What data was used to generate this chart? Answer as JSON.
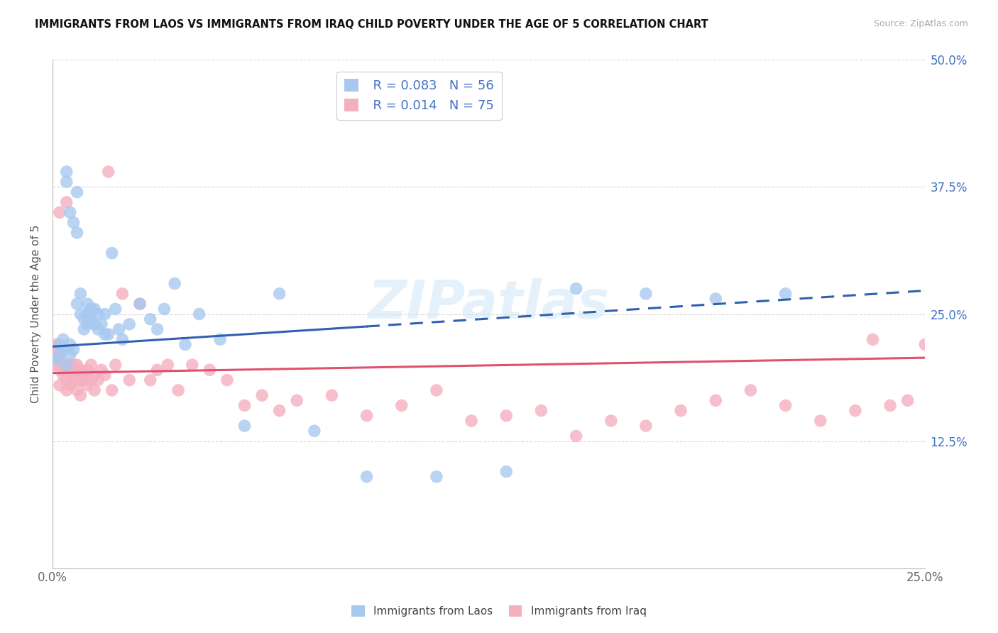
{
  "title": "IMMIGRANTS FROM LAOS VS IMMIGRANTS FROM IRAQ CHILD POVERTY UNDER THE AGE OF 5 CORRELATION CHART",
  "source": "Source: ZipAtlas.com",
  "ylabel_label": "Child Poverty Under the Age of 5",
  "legend_laos": "Immigrants from Laos",
  "legend_iraq": "Immigrants from Iraq",
  "r_laos": "0.083",
  "n_laos": "56",
  "r_iraq": "0.014",
  "n_iraq": "75",
  "color_laos": "#a8c8f0",
  "color_iraq": "#f5b0c0",
  "color_laos_line": "#3060b0",
  "color_iraq_line": "#e05070",
  "watermark": "ZIPatlas",
  "background": "#ffffff",
  "laos_x": [
    0.001,
    0.002,
    0.002,
    0.003,
    0.003,
    0.004,
    0.004,
    0.004,
    0.005,
    0.005,
    0.005,
    0.006,
    0.006,
    0.007,
    0.007,
    0.007,
    0.008,
    0.008,
    0.009,
    0.009,
    0.01,
    0.01,
    0.01,
    0.011,
    0.011,
    0.012,
    0.012,
    0.013,
    0.013,
    0.014,
    0.015,
    0.015,
    0.016,
    0.017,
    0.018,
    0.019,
    0.02,
    0.022,
    0.025,
    0.028,
    0.03,
    0.032,
    0.035,
    0.038,
    0.042,
    0.048,
    0.055,
    0.065,
    0.075,
    0.09,
    0.11,
    0.13,
    0.15,
    0.17,
    0.19,
    0.21
  ],
  "laos_y": [
    0.205,
    0.21,
    0.22,
    0.215,
    0.225,
    0.2,
    0.38,
    0.39,
    0.21,
    0.22,
    0.35,
    0.215,
    0.34,
    0.33,
    0.37,
    0.26,
    0.25,
    0.27,
    0.245,
    0.235,
    0.24,
    0.25,
    0.26,
    0.245,
    0.255,
    0.24,
    0.255,
    0.235,
    0.25,
    0.24,
    0.23,
    0.25,
    0.23,
    0.31,
    0.255,
    0.235,
    0.225,
    0.24,
    0.26,
    0.245,
    0.235,
    0.255,
    0.28,
    0.22,
    0.25,
    0.225,
    0.14,
    0.27,
    0.135,
    0.09,
    0.09,
    0.095,
    0.275,
    0.27,
    0.265,
    0.27
  ],
  "iraq_x": [
    0.001,
    0.001,
    0.001,
    0.001,
    0.002,
    0.002,
    0.002,
    0.002,
    0.003,
    0.003,
    0.003,
    0.004,
    0.004,
    0.004,
    0.004,
    0.005,
    0.005,
    0.005,
    0.006,
    0.006,
    0.006,
    0.007,
    0.007,
    0.007,
    0.008,
    0.008,
    0.008,
    0.009,
    0.009,
    0.01,
    0.01,
    0.011,
    0.011,
    0.012,
    0.012,
    0.013,
    0.014,
    0.015,
    0.016,
    0.017,
    0.018,
    0.02,
    0.022,
    0.025,
    0.028,
    0.03,
    0.033,
    0.036,
    0.04,
    0.045,
    0.05,
    0.055,
    0.06,
    0.065,
    0.07,
    0.08,
    0.09,
    0.1,
    0.11,
    0.12,
    0.13,
    0.14,
    0.15,
    0.16,
    0.17,
    0.18,
    0.19,
    0.2,
    0.21,
    0.22,
    0.23,
    0.235,
    0.24,
    0.245,
    0.25
  ],
  "iraq_y": [
    0.2,
    0.215,
    0.22,
    0.21,
    0.195,
    0.205,
    0.18,
    0.35,
    0.2,
    0.215,
    0.19,
    0.185,
    0.195,
    0.175,
    0.36,
    0.195,
    0.18,
    0.2,
    0.195,
    0.185,
    0.2,
    0.19,
    0.175,
    0.2,
    0.185,
    0.195,
    0.17,
    0.19,
    0.185,
    0.195,
    0.18,
    0.185,
    0.2,
    0.19,
    0.175,
    0.185,
    0.195,
    0.19,
    0.39,
    0.175,
    0.2,
    0.27,
    0.185,
    0.26,
    0.185,
    0.195,
    0.2,
    0.175,
    0.2,
    0.195,
    0.185,
    0.16,
    0.17,
    0.155,
    0.165,
    0.17,
    0.15,
    0.16,
    0.175,
    0.145,
    0.15,
    0.155,
    0.13,
    0.145,
    0.14,
    0.155,
    0.165,
    0.175,
    0.16,
    0.145,
    0.155,
    0.225,
    0.16,
    0.165,
    0.22
  ],
  "xlim": [
    0.0,
    0.25
  ],
  "ylim": [
    0.0,
    0.5
  ],
  "yticks": [
    0.125,
    0.25,
    0.375,
    0.5
  ],
  "ytick_labels": [
    "12.5%",
    "25.0%",
    "37.5%",
    "50.0%"
  ],
  "xticks": [
    0.0,
    0.25
  ],
  "xtick_labels": [
    "0.0%",
    "25.0%"
  ],
  "laos_line_solid_end": 0.09,
  "laos_line_dashed_start": 0.09
}
